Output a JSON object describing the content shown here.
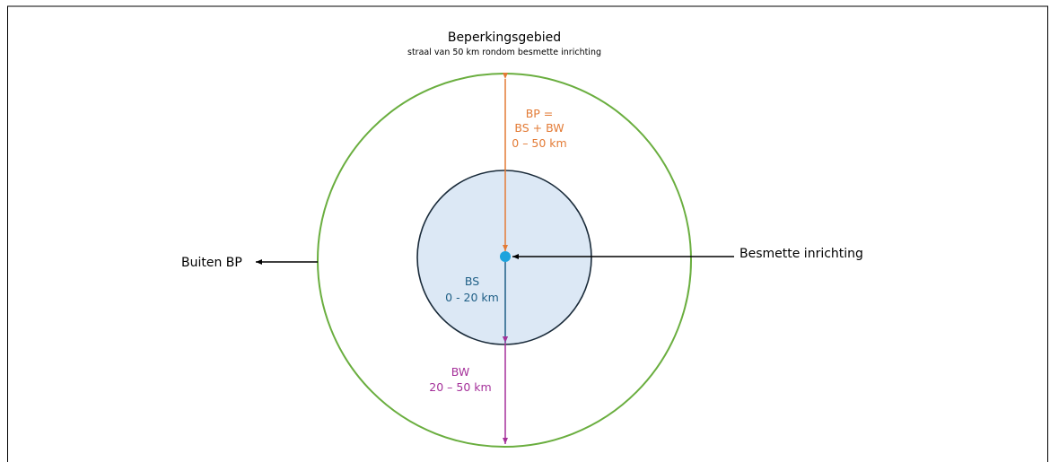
{
  "title": "Beperkingsgebied",
  "subtitle": "straal van 50 km rondom besmette inrichting",
  "outer_zone": {
    "label_lines": [
      "BP =",
      "BS + BW",
      "0 – 50 km"
    ],
    "color": "#6aae3f"
  },
  "inner_zone": {
    "label_lines": [
      "BS",
      "0 - 20 km"
    ],
    "fill": "#dce8f5",
    "stroke": "#1a2b3a",
    "arrow_color": "#1f5f86"
  },
  "ring_zone": {
    "label_lines": [
      "BW",
      "20 – 50 km"
    ],
    "color": "#a5319a"
  },
  "bp_arrow_color": "#e37b36",
  "center_dot_color": "#1ca3dd",
  "outside_label": "Buiten BP",
  "infected_label": "Besmette inrichting"
}
